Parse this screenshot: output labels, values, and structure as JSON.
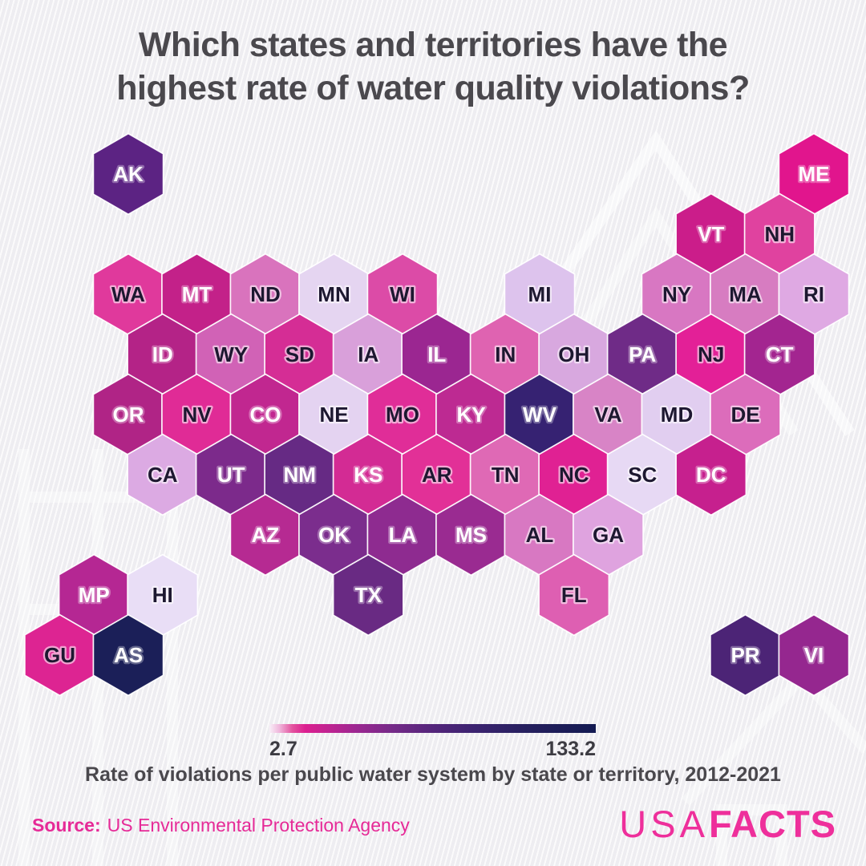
{
  "title": {
    "line1": "Which states and territories have the",
    "line2": "highest rate of water quality violations?"
  },
  "chart_data": {
    "type": "heatmap",
    "subtype": "hex-cartogram",
    "title": "Which states and territories have the highest rate of water quality violations?",
    "caption": "Rate of violations per public water system by state or territory, 2012-2021",
    "legend": {
      "min": "2.7",
      "max": "133.2",
      "value_domain": [
        2.7,
        133.2
      ],
      "gradient_stops": [
        {
          "pos": 0,
          "color": "#f8eef7"
        },
        {
          "pos": 3,
          "color": "#f0b7dc"
        },
        {
          "pos": 7,
          "color": "#e3539f"
        },
        {
          "pos": 11,
          "color": "#dc1f90"
        },
        {
          "pos": 18,
          "color": "#c02391"
        },
        {
          "pos": 27,
          "color": "#9b2791"
        },
        {
          "pos": 38,
          "color": "#742a88"
        },
        {
          "pos": 50,
          "color": "#54257b"
        },
        {
          "pos": 63,
          "color": "#3b2370"
        },
        {
          "pos": 78,
          "color": "#27205f"
        },
        {
          "pos": 100,
          "color": "#131a52"
        }
      ]
    },
    "states": [
      {
        "label": "AK",
        "row": 0,
        "col": 0,
        "color": "#5c2383",
        "text": "light"
      },
      {
        "label": "ME",
        "row": 0,
        "col": 10,
        "color": "#e1158d",
        "text": "light"
      },
      {
        "label": "VT",
        "row": 1,
        "col": 8,
        "color": "#cb1d8a",
        "text": "light"
      },
      {
        "label": "NH",
        "row": 1,
        "col": 9,
        "color": "#e0429f",
        "text": "dark"
      },
      {
        "label": "WA",
        "row": 2,
        "col": 0,
        "color": "#e0399c",
        "text": "dark"
      },
      {
        "label": "MT",
        "row": 2,
        "col": 1,
        "color": "#c32189",
        "text": "light"
      },
      {
        "label": "ND",
        "row": 2,
        "col": 2,
        "color": "#d973bd",
        "text": "dark"
      },
      {
        "label": "MN",
        "row": 2,
        "col": 3,
        "color": "#e5d5f1",
        "text": "dark"
      },
      {
        "label": "WI",
        "row": 2,
        "col": 4,
        "color": "#dc4ba7",
        "text": "dark"
      },
      {
        "label": "MI",
        "row": 2,
        "col": 6,
        "color": "#ddc3ed",
        "text": "dark"
      },
      {
        "label": "NY",
        "row": 2,
        "col": 8,
        "color": "#d877c2",
        "text": "dark"
      },
      {
        "label": "MA",
        "row": 2,
        "col": 9,
        "color": "#d77cc1",
        "text": "dark"
      },
      {
        "label": "RI",
        "row": 2,
        "col": 10,
        "color": "#dfa9e3",
        "text": "dark"
      },
      {
        "label": "ID",
        "row": 3,
        "col": 0,
        "color": "#b42387",
        "text": "light"
      },
      {
        "label": "WY",
        "row": 3,
        "col": 1,
        "color": "#d162b6",
        "text": "dark"
      },
      {
        "label": "SD",
        "row": 3,
        "col": 2,
        "color": "#d52d95",
        "text": "dark"
      },
      {
        "label": "IA",
        "row": 3,
        "col": 3,
        "color": "#d9a0da",
        "text": "dark"
      },
      {
        "label": "IL",
        "row": 3,
        "col": 4,
        "color": "#9b2691",
        "text": "light"
      },
      {
        "label": "IN",
        "row": 3,
        "col": 5,
        "color": "#df63b1",
        "text": "dark"
      },
      {
        "label": "OH",
        "row": 3,
        "col": 6,
        "color": "#d8a8df",
        "text": "dark"
      },
      {
        "label": "PA",
        "row": 3,
        "col": 7,
        "color": "#6f2b87",
        "text": "light"
      },
      {
        "label": "NJ",
        "row": 3,
        "col": 8,
        "color": "#e32097",
        "text": "dark"
      },
      {
        "label": "CT",
        "row": 3,
        "col": 9,
        "color": "#a32590",
        "text": "light"
      },
      {
        "label": "OR",
        "row": 4,
        "col": 0,
        "color": "#b02486",
        "text": "light"
      },
      {
        "label": "NV",
        "row": 4,
        "col": 1,
        "color": "#e02b96",
        "text": "dark"
      },
      {
        "label": "CO",
        "row": 4,
        "col": 2,
        "color": "#c12790",
        "text": "light"
      },
      {
        "label": "NE",
        "row": 4,
        "col": 3,
        "color": "#e4d3f1",
        "text": "dark"
      },
      {
        "label": "MO",
        "row": 4,
        "col": 4,
        "color": "#e02d98",
        "text": "dark"
      },
      {
        "label": "KY",
        "row": 4,
        "col": 5,
        "color": "#bd2a92",
        "text": "light"
      },
      {
        "label": "WV",
        "row": 4,
        "col": 6,
        "color": "#362272",
        "text": "light"
      },
      {
        "label": "VA",
        "row": 4,
        "col": 7,
        "color": "#d884c6",
        "text": "dark"
      },
      {
        "label": "MD",
        "row": 4,
        "col": 8,
        "color": "#e1cef0",
        "text": "dark"
      },
      {
        "label": "DE",
        "row": 4,
        "col": 9,
        "color": "#dc6cbb",
        "text": "dark"
      },
      {
        "label": "CA",
        "row": 5,
        "col": 0,
        "color": "#dcaae3",
        "text": "dark"
      },
      {
        "label": "UT",
        "row": 5,
        "col": 1,
        "color": "#7c2a8b",
        "text": "light"
      },
      {
        "label": "NM",
        "row": 5,
        "col": 2,
        "color": "#662a84",
        "text": "light"
      },
      {
        "label": "KS",
        "row": 5,
        "col": 3,
        "color": "#d32b94",
        "text": "light"
      },
      {
        "label": "AR",
        "row": 5,
        "col": 4,
        "color": "#e23097",
        "text": "dark"
      },
      {
        "label": "TN",
        "row": 5,
        "col": 5,
        "color": "#df69b5",
        "text": "dark"
      },
      {
        "label": "NC",
        "row": 5,
        "col": 6,
        "color": "#e02193",
        "text": "dark"
      },
      {
        "label": "SC",
        "row": 5,
        "col": 7,
        "color": "#e7d9f4",
        "text": "dark"
      },
      {
        "label": "DC",
        "row": 5,
        "col": 8,
        "color": "#c6208e",
        "text": "light"
      },
      {
        "label": "AZ",
        "row": 6,
        "col": 2,
        "color": "#b62a92",
        "text": "light"
      },
      {
        "label": "OK",
        "row": 6,
        "col": 3,
        "color": "#7b2d8d",
        "text": "light"
      },
      {
        "label": "LA",
        "row": 6,
        "col": 4,
        "color": "#8e2b90",
        "text": "light"
      },
      {
        "label": "MS",
        "row": 6,
        "col": 5,
        "color": "#9a2b91",
        "text": "light"
      },
      {
        "label": "AL",
        "row": 6,
        "col": 6,
        "color": "#d878c2",
        "text": "dark"
      },
      {
        "label": "GA",
        "row": 6,
        "col": 7,
        "color": "#dfa3df",
        "text": "dark"
      },
      {
        "label": "MP",
        "row": 7,
        "col": -1,
        "color": "#b52793",
        "text": "light"
      },
      {
        "label": "HI",
        "row": 7,
        "col": 0,
        "color": "#e9def6",
        "text": "dark"
      },
      {
        "label": "TX",
        "row": 7,
        "col": 3,
        "color": "#692a83",
        "text": "light"
      },
      {
        "label": "FL",
        "row": 7,
        "col": 6,
        "color": "#de5fb2",
        "text": "dark"
      },
      {
        "label": "GU",
        "row": 8,
        "col": -1,
        "color": "#dd2492",
        "text": "dark"
      },
      {
        "label": "AS",
        "row": 8,
        "col": 0,
        "color": "#1b1f58",
        "text": "light"
      },
      {
        "label": "PR",
        "row": 8,
        "col": 9,
        "color": "#4c2476",
        "text": "light"
      },
      {
        "label": "VI",
        "row": 8,
        "col": 10,
        "color": "#95278f",
        "text": "light"
      }
    ]
  },
  "source": {
    "label": "Source:",
    "text": "US Environmental Protection Agency"
  },
  "logo": {
    "part1": "USA",
    "part2": "FACTS"
  }
}
